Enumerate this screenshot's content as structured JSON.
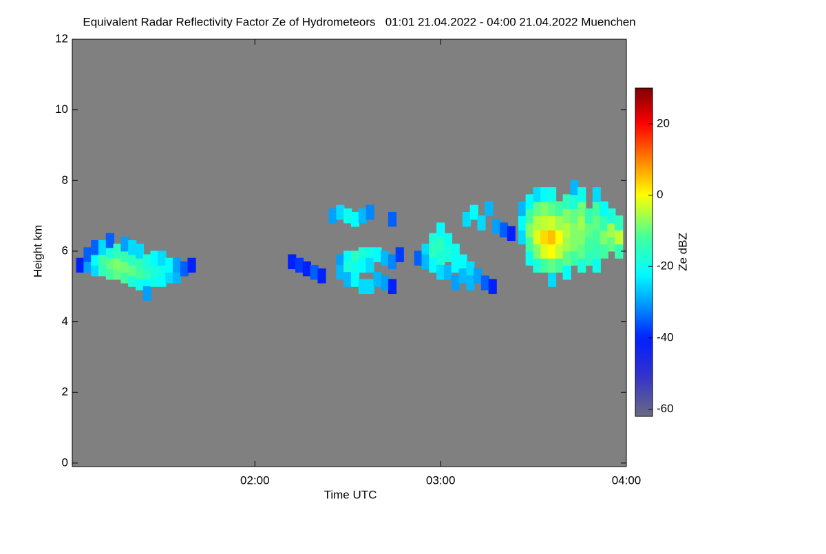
{
  "chart_data": {
    "type": "heatmap",
    "title": "Equivalent Radar Reflectivity Factor Ze of Hydrometeors   01:01 21.04.2022 - 04:00 21.04.2022 Muenchen",
    "xlabel": "Time UTC",
    "ylabel": "Height km",
    "xlim": [
      1.0167,
      4.0
    ],
    "ylim": [
      -0.1,
      12
    ],
    "xticks": [
      {
        "value": 2,
        "label": "02:00"
      },
      {
        "value": 3,
        "label": "03:00"
      },
      {
        "value": 4,
        "label": "04:00"
      }
    ],
    "yticks": [
      0,
      2,
      4,
      6,
      8,
      10,
      12
    ],
    "background": "#808080",
    "colorbar": {
      "label": "Ze dBZ",
      "lim": [
        -62,
        30
      ],
      "ticks": [
        -60,
        -40,
        -20,
        0,
        20
      ]
    },
    "cells": [
      [
        1.06,
        5.6,
        -40
      ],
      [
        1.1,
        5.6,
        -30
      ],
      [
        1.1,
        5.9,
        -35
      ],
      [
        1.14,
        5.5,
        -25
      ],
      [
        1.14,
        5.8,
        -22
      ],
      [
        1.14,
        6.1,
        -35
      ],
      [
        1.18,
        5.5,
        -15
      ],
      [
        1.18,
        5.8,
        -12
      ],
      [
        1.18,
        6.1,
        -25
      ],
      [
        1.22,
        5.4,
        -12
      ],
      [
        1.22,
        5.7,
        -10
      ],
      [
        1.22,
        6.0,
        -18
      ],
      [
        1.22,
        6.3,
        -35
      ],
      [
        1.26,
        5.4,
        -10
      ],
      [
        1.26,
        5.7,
        -8
      ],
      [
        1.26,
        6.0,
        -15
      ],
      [
        1.3,
        5.3,
        -12
      ],
      [
        1.3,
        5.6,
        -9
      ],
      [
        1.3,
        5.9,
        -14
      ],
      [
        1.3,
        6.2,
        -30
      ],
      [
        1.34,
        5.2,
        -18
      ],
      [
        1.34,
        5.5,
        -10
      ],
      [
        1.34,
        5.8,
        -15
      ],
      [
        1.34,
        6.1,
        -25
      ],
      [
        1.38,
        5.1,
        -20
      ],
      [
        1.38,
        5.4,
        -12
      ],
      [
        1.38,
        5.7,
        -14
      ],
      [
        1.38,
        6.0,
        -25
      ],
      [
        1.42,
        5.1,
        -22
      ],
      [
        1.42,
        5.4,
        -15
      ],
      [
        1.42,
        5.7,
        -18
      ],
      [
        1.42,
        4.8,
        -30
      ],
      [
        1.46,
        5.2,
        -20
      ],
      [
        1.46,
        5.5,
        -18
      ],
      [
        1.46,
        5.8,
        -22
      ],
      [
        1.5,
        5.2,
        -22
      ],
      [
        1.5,
        5.5,
        -20
      ],
      [
        1.5,
        5.8,
        -25
      ],
      [
        1.54,
        5.3,
        -25
      ],
      [
        1.54,
        5.6,
        -22
      ],
      [
        1.58,
        5.3,
        -28
      ],
      [
        1.58,
        5.6,
        -30
      ],
      [
        1.62,
        5.5,
        -35
      ],
      [
        1.66,
        5.6,
        -40
      ],
      [
        2.2,
        5.7,
        -40
      ],
      [
        2.24,
        5.6,
        -38
      ],
      [
        2.28,
        5.5,
        -40
      ],
      [
        2.32,
        5.4,
        -35
      ],
      [
        2.36,
        5.3,
        -40
      ],
      [
        2.46,
        5.7,
        -30
      ],
      [
        2.46,
        5.4,
        -28
      ],
      [
        2.5,
        5.8,
        -22
      ],
      [
        2.5,
        5.5,
        -18
      ],
      [
        2.5,
        5.2,
        -28
      ],
      [
        2.54,
        5.8,
        -15
      ],
      [
        2.54,
        5.5,
        -20
      ],
      [
        2.54,
        5.2,
        -22
      ],
      [
        2.58,
        5.9,
        -18
      ],
      [
        2.58,
        5.6,
        -22
      ],
      [
        2.58,
        5.0,
        -25
      ],
      [
        2.62,
        5.9,
        -20
      ],
      [
        2.62,
        5.6,
        -25
      ],
      [
        2.62,
        5.0,
        -25
      ],
      [
        2.66,
        5.9,
        -22
      ],
      [
        2.66,
        5.2,
        -28
      ],
      [
        2.7,
        5.8,
        -28
      ],
      [
        2.7,
        5.1,
        -30
      ],
      [
        2.74,
        5.7,
        -32
      ],
      [
        2.74,
        5.0,
        -40
      ],
      [
        2.78,
        5.9,
        -38
      ],
      [
        2.42,
        7.0,
        -30
      ],
      [
        2.46,
        7.1,
        -25
      ],
      [
        2.5,
        7.0,
        -20
      ],
      [
        2.54,
        6.9,
        -22
      ],
      [
        2.58,
        7.0,
        -28
      ],
      [
        2.62,
        7.1,
        -32
      ],
      [
        2.74,
        6.9,
        -35
      ],
      [
        2.88,
        5.8,
        -35
      ],
      [
        2.92,
        6.0,
        -25
      ],
      [
        2.92,
        5.7,
        -28
      ],
      [
        2.96,
        6.3,
        -18
      ],
      [
        2.96,
        6.0,
        -15
      ],
      [
        2.96,
        5.6,
        -22
      ],
      [
        3.0,
        6.6,
        -22
      ],
      [
        3.0,
        6.2,
        -15
      ],
      [
        3.0,
        5.8,
        -18
      ],
      [
        3.0,
        5.4,
        -25
      ],
      [
        3.04,
        6.3,
        -20
      ],
      [
        3.04,
        5.9,
        -18
      ],
      [
        3.04,
        5.4,
        -28
      ],
      [
        3.08,
        6.0,
        -20
      ],
      [
        3.08,
        5.6,
        -22
      ],
      [
        3.08,
        5.1,
        -30
      ],
      [
        3.12,
        5.7,
        -22
      ],
      [
        3.12,
        5.3,
        -28
      ],
      [
        3.16,
        5.5,
        -25
      ],
      [
        3.16,
        5.1,
        -28
      ],
      [
        3.2,
        5.3,
        -30
      ],
      [
        3.24,
        5.1,
        -35
      ],
      [
        3.28,
        5.0,
        -40
      ],
      [
        3.14,
        6.9,
        -25
      ],
      [
        3.18,
        7.1,
        -22
      ],
      [
        3.22,
        6.8,
        -25
      ],
      [
        3.26,
        7.2,
        -28
      ],
      [
        3.3,
        6.7,
        -30
      ],
      [
        3.34,
        6.6,
        -35
      ],
      [
        3.38,
        6.5,
        -40
      ],
      [
        3.44,
        6.4,
        -25
      ],
      [
        3.44,
        6.8,
        -22
      ],
      [
        3.44,
        7.2,
        -28
      ],
      [
        3.48,
        5.8,
        -20
      ],
      [
        3.48,
        6.2,
        -12
      ],
      [
        3.48,
        6.6,
        -8
      ],
      [
        3.48,
        7.0,
        -12
      ],
      [
        3.48,
        7.4,
        -22
      ],
      [
        3.52,
        5.6,
        -18
      ],
      [
        3.52,
        6.0,
        -8
      ],
      [
        3.52,
        6.4,
        -2
      ],
      [
        3.52,
        6.8,
        -5
      ],
      [
        3.52,
        7.2,
        -10
      ],
      [
        3.52,
        7.6,
        -25
      ],
      [
        3.56,
        5.6,
        -12
      ],
      [
        3.56,
        6.0,
        -2
      ],
      [
        3.56,
        6.4,
        3
      ],
      [
        3.56,
        6.8,
        -4
      ],
      [
        3.56,
        7.2,
        -8
      ],
      [
        3.56,
        7.6,
        -22
      ],
      [
        3.6,
        5.2,
        -25
      ],
      [
        3.6,
        5.6,
        -10
      ],
      [
        3.6,
        6.0,
        0
      ],
      [
        3.6,
        6.4,
        5
      ],
      [
        3.6,
        6.8,
        -3
      ],
      [
        3.6,
        7.2,
        -10
      ],
      [
        3.6,
        7.6,
        -20
      ],
      [
        3.64,
        5.6,
        -12
      ],
      [
        3.64,
        6.0,
        -4
      ],
      [
        3.64,
        6.4,
        0
      ],
      [
        3.64,
        6.8,
        -6
      ],
      [
        3.64,
        7.2,
        -12
      ],
      [
        3.68,
        5.4,
        -22
      ],
      [
        3.68,
        5.8,
        -10
      ],
      [
        3.68,
        6.2,
        -6
      ],
      [
        3.68,
        6.6,
        -5
      ],
      [
        3.68,
        7.0,
        -8
      ],
      [
        3.68,
        7.4,
        -15
      ],
      [
        3.72,
        5.8,
        -12
      ],
      [
        3.72,
        6.2,
        -8
      ],
      [
        3.72,
        6.6,
        -8
      ],
      [
        3.72,
        7.0,
        -10
      ],
      [
        3.72,
        7.4,
        -18
      ],
      [
        3.72,
        7.8,
        -28
      ],
      [
        3.76,
        5.6,
        -18
      ],
      [
        3.76,
        6.0,
        -10
      ],
      [
        3.76,
        6.4,
        -8
      ],
      [
        3.76,
        6.8,
        -6
      ],
      [
        3.76,
        7.2,
        -9
      ],
      [
        3.76,
        7.6,
        -20
      ],
      [
        3.8,
        5.8,
        -15
      ],
      [
        3.8,
        6.2,
        -12
      ],
      [
        3.8,
        6.6,
        -10
      ],
      [
        3.8,
        7.0,
        -14
      ],
      [
        3.84,
        5.6,
        -20
      ],
      [
        3.84,
        6.0,
        -14
      ],
      [
        3.84,
        6.4,
        -12
      ],
      [
        3.84,
        6.8,
        -10
      ],
      [
        3.84,
        7.2,
        -12
      ],
      [
        3.84,
        7.6,
        -25
      ],
      [
        3.88,
        6.0,
        -12
      ],
      [
        3.88,
        6.4,
        -8
      ],
      [
        3.88,
        6.8,
        -14
      ],
      [
        3.88,
        7.2,
        -22
      ],
      [
        3.92,
        6.2,
        -10
      ],
      [
        3.92,
        6.6,
        -6
      ],
      [
        3.92,
        7.0,
        -18
      ],
      [
        3.96,
        6.0,
        -14
      ],
      [
        3.96,
        6.4,
        -4
      ],
      [
        3.96,
        6.8,
        -15
      ]
    ]
  }
}
